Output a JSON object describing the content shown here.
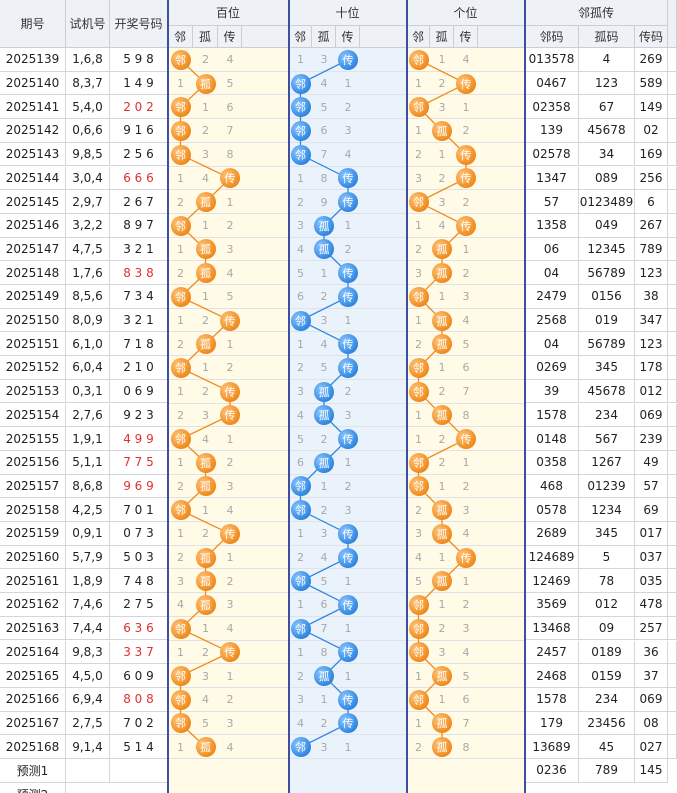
{
  "headers": {
    "period": "期号",
    "trial": "试机号",
    "draw": "开奖号码",
    "hundreds": "百位",
    "tens": "十位",
    "units": "个位",
    "lgc": "邻孤传",
    "sub": [
      "邻",
      "孤",
      "传"
    ],
    "lgc_sub": [
      "邻码",
      "孤码",
      "传码"
    ]
  },
  "colors": {
    "orange_ball": "#f08a1c",
    "blue_ball": "#2f86e0",
    "orange_bg": "#fffbe6",
    "blue_bg": "#eaf3fc",
    "separator": "#3c4fa0",
    "repeat_red": "#e03030"
  },
  "rows": [
    {
      "period": "2025139",
      "trial": "1,6,8",
      "draw": "5 9 8",
      "red": false,
      "h": [
        1,
        2,
        4
      ],
      "t": [
        1,
        3,
        "传"
      ],
      "u": [
        1,
        1,
        4
      ],
      "lin": "013578",
      "gu": "4",
      "chuan": "269"
    },
    {
      "period": "2025140",
      "trial": "8,3,7",
      "draw": "1 4 9",
      "red": false,
      "h": [
        1,
        1,
        5
      ],
      "t": [
        1,
        4,
        1
      ],
      "u": [
        1,
        2,
        1
      ],
      "lin": "0467",
      "gu": "123",
      "chuan": "589"
    },
    {
      "period": "2025141",
      "trial": "5,4,0",
      "draw": "2 0 2",
      "red": true,
      "h": [
        1,
        1,
        6
      ],
      "t": [
        1,
        5,
        2
      ],
      "u": [
        1,
        3,
        1
      ],
      "lin": "02358",
      "gu": "67",
      "chuan": "149"
    },
    {
      "period": "2025142",
      "trial": "0,6,6",
      "draw": "9 1 6",
      "red": false,
      "h": [
        1,
        2,
        7
      ],
      "t": [
        1,
        6,
        3
      ],
      "u": [
        1,
        1,
        2
      ],
      "lin": "139",
      "gu": "45678",
      "chuan": "02"
    },
    {
      "period": "2025143",
      "trial": "9,8,5",
      "draw": "2 5 6",
      "red": false,
      "h": [
        1,
        3,
        8
      ],
      "t": [
        1,
        7,
        4
      ],
      "u": [
        2,
        1,
        1
      ],
      "lin": "02578",
      "gu": "34",
      "chuan": "169"
    },
    {
      "period": "2025144",
      "trial": "3,0,4",
      "draw": "6 6 6",
      "red": true,
      "h": [
        1,
        4,
        1
      ],
      "t": [
        1,
        8,
        1
      ],
      "u": [
        3,
        2,
        1
      ],
      "lin": "1347",
      "gu": "089",
      "chuan": "256"
    },
    {
      "period": "2025145",
      "trial": "2,9,7",
      "draw": "2 6 7",
      "red": false,
      "h": [
        2,
        1,
        1
      ],
      "t": [
        2,
        9,
        1
      ],
      "u": [
        1,
        3,
        2
      ],
      "lin": "57",
      "gu": "0123489",
      "chuan": "6"
    },
    {
      "period": "2025146",
      "trial": "3,2,2",
      "draw": "8 9 7",
      "red": false,
      "h": [
        1,
        1,
        2
      ],
      "t": [
        3,
        1,
        1
      ],
      "u": [
        1,
        4,
        1
      ],
      "lin": "1358",
      "gu": "049",
      "chuan": "267"
    },
    {
      "period": "2025147",
      "trial": "4,7,5",
      "draw": "3 2 1",
      "red": false,
      "h": [
        1,
        1,
        3
      ],
      "t": [
        4,
        1,
        2
      ],
      "u": [
        2,
        1,
        1
      ],
      "lin": "06",
      "gu": "12345",
      "chuan": "789"
    },
    {
      "period": "2025148",
      "trial": "1,7,6",
      "draw": "8 3 8",
      "red": true,
      "h": [
        2,
        1,
        4
      ],
      "t": [
        5,
        1,
        1
      ],
      "u": [
        3,
        1,
        2
      ],
      "lin": "04",
      "gu": "56789",
      "chuan": "123"
    },
    {
      "period": "2025149",
      "trial": "8,5,6",
      "draw": "7 3 4",
      "red": false,
      "h": [
        1,
        1,
        5
      ],
      "t": [
        6,
        2,
        1
      ],
      "u": [
        1,
        1,
        3
      ],
      "lin": "2479",
      "gu": "0156",
      "chuan": "38"
    },
    {
      "period": "2025150",
      "trial": "8,0,9",
      "draw": "3 2 1",
      "red": false,
      "h": [
        1,
        2,
        1
      ],
      "t": [
        1,
        3,
        1
      ],
      "u": [
        1,
        1,
        4
      ],
      "lin": "2568",
      "gu": "019",
      "chuan": "347"
    },
    {
      "period": "2025151",
      "trial": "6,1,0",
      "draw": "7 1 8",
      "red": false,
      "h": [
        2,
        1,
        1
      ],
      "t": [
        1,
        4,
        1
      ],
      "u": [
        2,
        1,
        5
      ],
      "lin": "04",
      "gu": "56789",
      "chuan": "123"
    },
    {
      "period": "2025152",
      "trial": "6,0,4",
      "draw": "2 1 0",
      "red": false,
      "h": [
        1,
        1,
        2
      ],
      "t": [
        2,
        5,
        1
      ],
      "u": [
        1,
        1,
        6
      ],
      "lin": "0269",
      "gu": "345",
      "chuan": "178"
    },
    {
      "period": "2025153",
      "trial": "0,3,1",
      "draw": "0 6 9",
      "red": false,
      "h": [
        1,
        2,
        1
      ],
      "t": [
        3,
        1,
        2
      ],
      "u": [
        1,
        2,
        7
      ],
      "lin": "39",
      "gu": "45678",
      "chuan": "012"
    },
    {
      "period": "2025154",
      "trial": "2,7,6",
      "draw": "9 2 3",
      "red": false,
      "h": [
        2,
        3,
        1
      ],
      "t": [
        4,
        1,
        3
      ],
      "u": [
        1,
        1,
        8
      ],
      "lin": "1578",
      "gu": "234",
      "chuan": "069"
    },
    {
      "period": "2025155",
      "trial": "1,9,1",
      "draw": "4 9 9",
      "red": true,
      "h": [
        1,
        4,
        1
      ],
      "t": [
        5,
        2,
        1
      ],
      "u": [
        1,
        2,
        1
      ],
      "lin": "0148",
      "gu": "567",
      "chuan": "239"
    },
    {
      "period": "2025156",
      "trial": "5,1,1",
      "draw": "7 7 5",
      "red": true,
      "h": [
        1,
        1,
        2
      ],
      "t": [
        6,
        1,
        1
      ],
      "u": [
        1,
        2,
        1
      ],
      "lin": "0358",
      "gu": "1267",
      "chuan": "49"
    },
    {
      "period": "2025157",
      "trial": "8,6,8",
      "draw": "9 6 9",
      "red": true,
      "h": [
        2,
        1,
        3
      ],
      "t": [
        1,
        1,
        2
      ],
      "u": [
        1,
        1,
        2
      ],
      "lin": "468",
      "gu": "01239",
      "chuan": "57"
    },
    {
      "period": "2025158",
      "trial": "4,2,5",
      "draw": "7 0 1",
      "red": false,
      "h": [
        1,
        1,
        4
      ],
      "t": [
        1,
        2,
        3
      ],
      "u": [
        2,
        1,
        3
      ],
      "lin": "0578",
      "gu": "1234",
      "chuan": "69"
    },
    {
      "period": "2025159",
      "trial": "0,9,1",
      "draw": "0 7 3",
      "red": false,
      "h": [
        1,
        2,
        1
      ],
      "t": [
        1,
        3,
        1
      ],
      "u": [
        3,
        1,
        4
      ],
      "lin": "2689",
      "gu": "345",
      "chuan": "017"
    },
    {
      "period": "2025160",
      "trial": "5,7,9",
      "draw": "5 0 3",
      "red": false,
      "h": [
        2,
        1,
        1
      ],
      "t": [
        2,
        4,
        1
      ],
      "u": [
        4,
        1,
        1
      ],
      "lin": "124689",
      "gu": "5",
      "chuan": "037"
    },
    {
      "period": "2025161",
      "trial": "1,8,9",
      "draw": "7 4 8",
      "red": false,
      "h": [
        3,
        1,
        2
      ],
      "t": [
        1,
        5,
        1
      ],
      "u": [
        5,
        1,
        1
      ],
      "lin": "12469",
      "gu": "78",
      "chuan": "035"
    },
    {
      "period": "2025162",
      "trial": "7,4,6",
      "draw": "2 7 5",
      "red": false,
      "h": [
        4,
        1,
        3
      ],
      "t": [
        1,
        6,
        1
      ],
      "u": [
        1,
        1,
        2
      ],
      "lin": "3569",
      "gu": "012",
      "chuan": "478"
    },
    {
      "period": "2025163",
      "trial": "7,4,4",
      "draw": "6 3 6",
      "red": true,
      "h": [
        1,
        1,
        4
      ],
      "t": [
        1,
        7,
        1
      ],
      "u": [
        1,
        2,
        3
      ],
      "lin": "13468",
      "gu": "09",
      "chuan": "257"
    },
    {
      "period": "2025164",
      "trial": "9,8,3",
      "draw": "3 3 7",
      "red": true,
      "h": [
        1,
        2,
        1
      ],
      "t": [
        1,
        8,
        1
      ],
      "u": [
        1,
        3,
        4
      ],
      "lin": "2457",
      "gu": "0189",
      "chuan": "36"
    },
    {
      "period": "2025165",
      "trial": "4,5,0",
      "draw": "6 0 9",
      "red": false,
      "h": [
        1,
        3,
        1
      ],
      "t": [
        2,
        1,
        1
      ],
      "u": [
        1,
        1,
        5
      ],
      "lin": "2468",
      "gu": "0159",
      "chuan": "37"
    },
    {
      "period": "2025166",
      "trial": "6,9,4",
      "draw": "8 0 8",
      "red": true,
      "h": [
        1,
        4,
        2
      ],
      "t": [
        3,
        1,
        1
      ],
      "u": [
        1,
        1,
        6
      ],
      "lin": "1578",
      "gu": "234",
      "chuan": "069"
    },
    {
      "period": "2025167",
      "trial": "2,7,5",
      "draw": "7 0 2",
      "red": false,
      "h": [
        1,
        5,
        3
      ],
      "t": [
        4,
        2,
        1
      ],
      "u": [
        1,
        1,
        7
      ],
      "lin": "179",
      "gu": "23456",
      "chuan": "08"
    },
    {
      "period": "2025168",
      "trial": "9,1,4",
      "draw": "5 1 4",
      "red": false,
      "h": [
        1,
        1,
        4
      ],
      "t": [
        1,
        3,
        1
      ],
      "u": [
        2,
        1,
        8
      ],
      "lin": "13689",
      "gu": "45",
      "chuan": "027"
    }
  ],
  "hits": {
    "h": [
      0,
      1,
      0,
      0,
      0,
      2,
      1,
      0,
      1,
      1,
      0,
      2,
      1,
      0,
      2,
      2,
      0,
      1,
      1,
      0,
      2,
      1,
      1,
      1,
      0,
      2,
      0,
      0,
      0,
      1
    ],
    "t": [
      2,
      0,
      0,
      0,
      0,
      2,
      2,
      1,
      1,
      2,
      2,
      0,
      2,
      2,
      1,
      1,
      2,
      1,
      0,
      0,
      2,
      2,
      0,
      2,
      0,
      2,
      1,
      2,
      2,
      0
    ],
    "u": [
      0,
      2,
      0,
      1,
      2,
      2,
      0,
      2,
      1,
      1,
      0,
      1,
      1,
      0,
      0,
      1,
      2,
      0,
      0,
      1,
      1,
      2,
      1,
      0,
      0,
      0,
      1,
      0,
      1,
      1
    ]
  },
  "predict": {
    "label": "预测1",
    "lin": "0236",
    "gu": "789",
    "chuan": "145"
  },
  "predict2": {
    "label": "预测2"
  },
  "ball_labels": [
    "邻",
    "孤",
    "传"
  ]
}
